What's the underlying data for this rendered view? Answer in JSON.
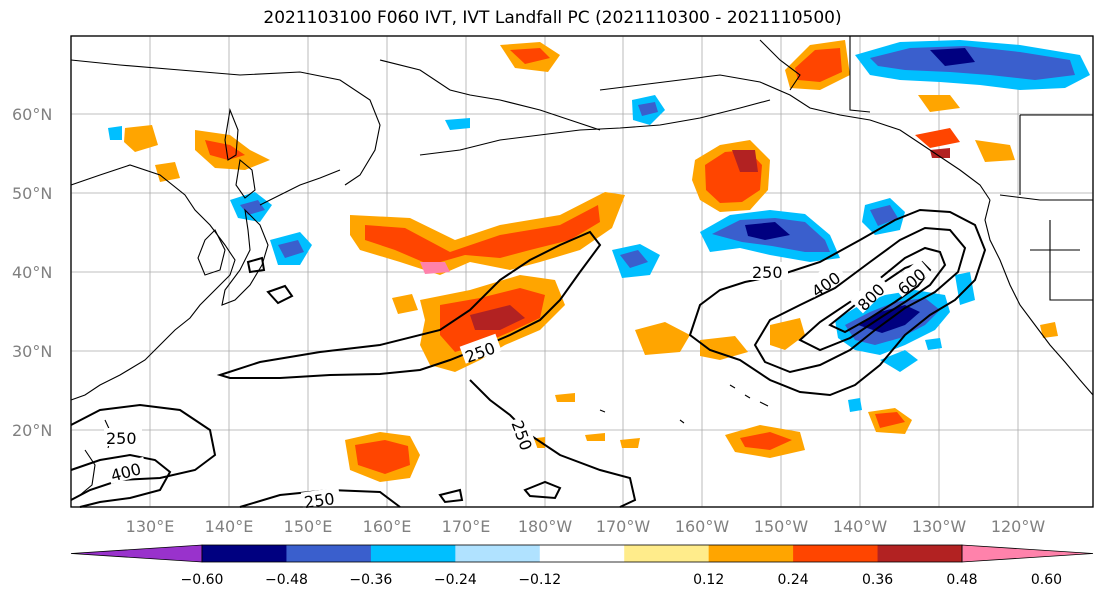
{
  "title": "2021103100 F060 IVT, IVT Landfall PC (2021110300 - 2021110500)",
  "lat_labels": [
    "60°N",
    "50°N",
    "40°N",
    "30°N",
    "20°N"
  ],
  "lon_labels": [
    "130°E",
    "140°E",
    "150°E",
    "160°E",
    "170°E",
    "180°W",
    "170°W",
    "160°W",
    "150°W",
    "140°W",
    "130°W",
    "120°W"
  ],
  "contour_labels": [
    "250",
    "400",
    "800",
    "600",
    "250",
    "250",
    "250",
    "400",
    "250"
  ],
  "colorbar": {
    "ticks": [
      "−0.60",
      "−0.48",
      "−0.36",
      "−0.24",
      "−0.12",
      "0.12",
      "0.24",
      "0.36",
      "0.48",
      "0.60"
    ],
    "colors": [
      "#9932cc",
      "#000080",
      "#3a5fcd",
      "#00bfff",
      "#b0e2ff",
      "#ffffff",
      "#ffec8b",
      "#ffa500",
      "#ff4500",
      "#b22222",
      "#ff82ab"
    ]
  },
  "colors": {
    "coast": "#000000",
    "grid": "#aaaaaa",
    "axis_label": "#808080"
  }
}
